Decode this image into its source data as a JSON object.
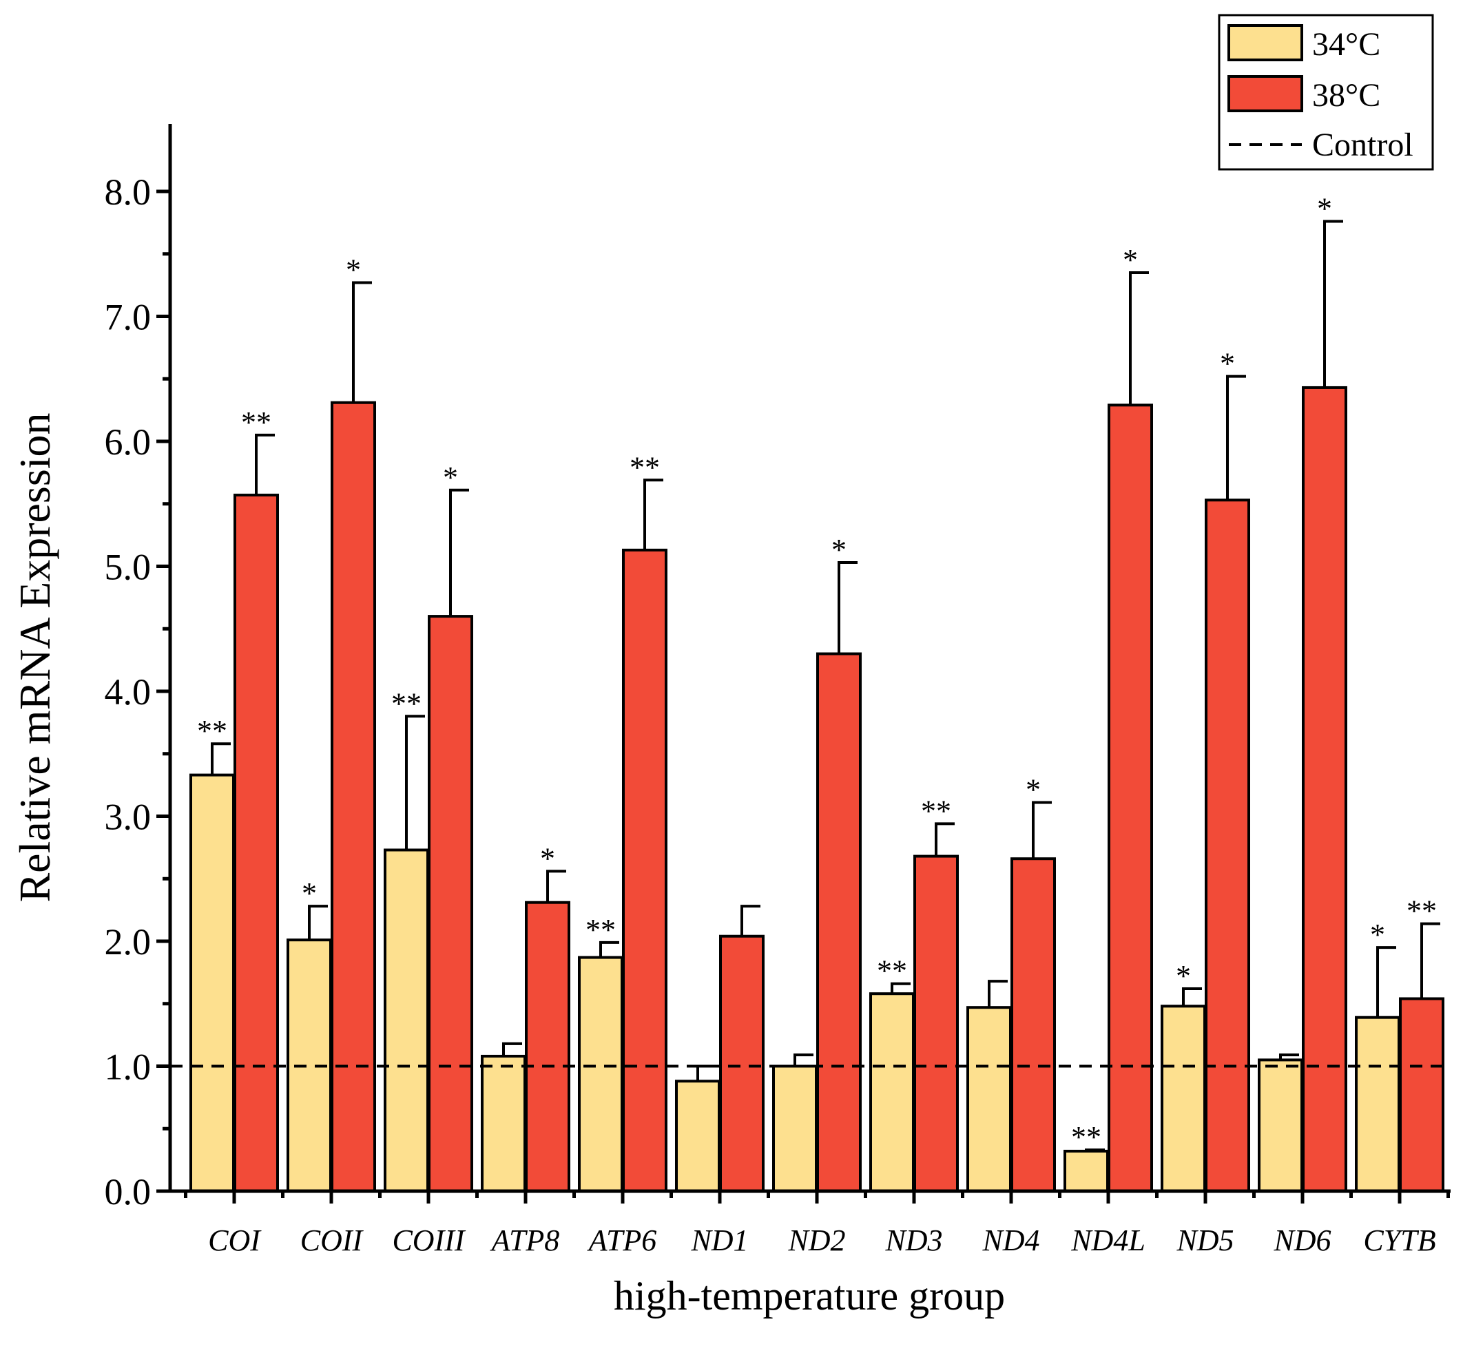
{
  "chart_data": {
    "type": "bar",
    "title": "",
    "xlabel": "high-temperature group",
    "ylabel": "Relative mRNA Expression",
    "ylim": [
      0,
      8.5
    ],
    "yticks": [
      0,
      1,
      2,
      3,
      4,
      5,
      6,
      7,
      8
    ],
    "ytick_labels": [
      "0.0",
      "1.0",
      "2.0",
      "3.0",
      "4.0",
      "5.0",
      "6.0",
      "7.0",
      "8.0"
    ],
    "categories": [
      "COI",
      "COII",
      "COIII",
      "ATP8",
      "ATP6",
      "ND1",
      "ND2",
      "ND3",
      "ND4",
      "ND4L",
      "ND5",
      "ND6",
      "CYTB"
    ],
    "series": [
      {
        "name": "34°C",
        "color": "#fde08f",
        "values": [
          3.33,
          2.01,
          2.73,
          1.08,
          1.87,
          0.88,
          1.0,
          1.58,
          1.47,
          0.32,
          1.48,
          1.05,
          1.39
        ],
        "errors": [
          0.25,
          0.27,
          1.07,
          0.1,
          0.12,
          0.12,
          0.09,
          0.08,
          0.21,
          0.01,
          0.14,
          0.04,
          0.56
        ],
        "significance": [
          "**",
          "*",
          "**",
          "",
          "**",
          "",
          "",
          "**",
          "",
          "**",
          "*",
          "",
          "*"
        ]
      },
      {
        "name": "38°C",
        "color": "#f24b38",
        "values": [
          5.57,
          6.31,
          4.6,
          2.31,
          5.13,
          2.04,
          4.3,
          2.68,
          2.66,
          6.29,
          5.53,
          6.43,
          1.54
        ],
        "errors": [
          0.48,
          0.96,
          1.01,
          0.25,
          0.56,
          0.24,
          0.73,
          0.26,
          0.45,
          1.06,
          0.99,
          1.33,
          0.6
        ],
        "significance": [
          "**",
          "*",
          "*",
          "*",
          "**",
          "",
          "*",
          "**",
          "*",
          "*",
          "*",
          "*",
          "**"
        ]
      }
    ],
    "reference_line": {
      "name": "Control",
      "value": 1.0,
      "style": "dashed"
    },
    "legend": {
      "position": "top-right",
      "entries": [
        "34°C",
        "38°C",
        "Control"
      ]
    }
  }
}
